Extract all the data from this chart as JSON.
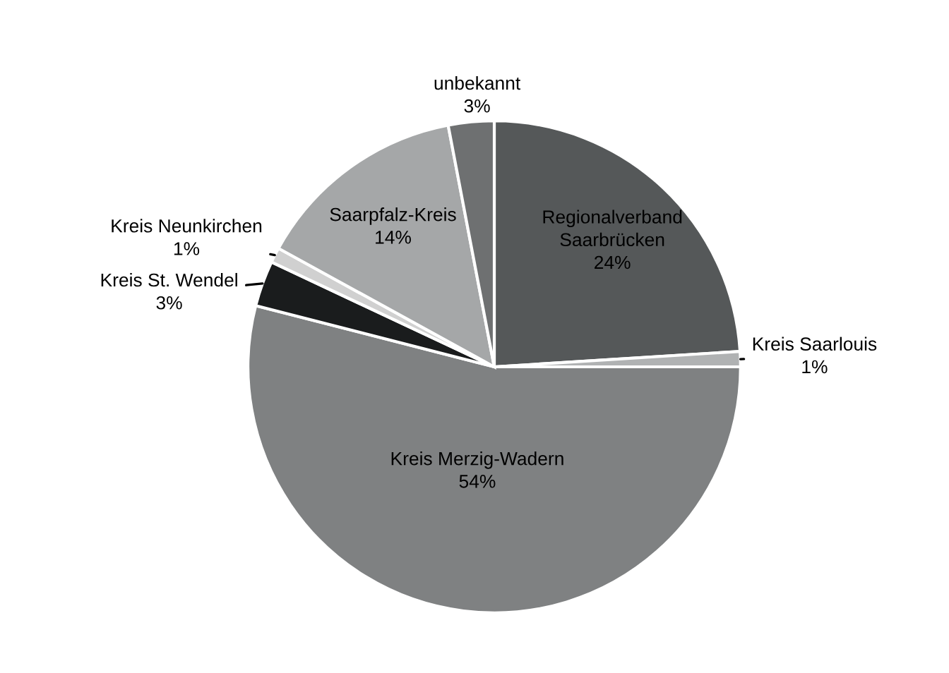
{
  "chart_data": {
    "type": "pie",
    "categories": [
      "Regionalverband Saarbrücken",
      "Kreis Saarlouis",
      "Kreis Merzig-Wadern",
      "Kreis St. Wendel",
      "Kreis Neunkirchen",
      "Saarpfalz-Kreis",
      "unbekannt"
    ],
    "values": [
      24,
      1,
      54,
      3,
      1,
      14,
      3
    ],
    "value_labels": [
      "24%",
      "1%",
      "54%",
      "3%",
      "1%",
      "14%",
      "3%"
    ],
    "colors": [
      "#555859",
      "#b0b2b3",
      "#7f8182",
      "#1a1c1d",
      "#d0d0d0",
      "#a5a7a8",
      "#6e7071"
    ],
    "legend": false
  }
}
